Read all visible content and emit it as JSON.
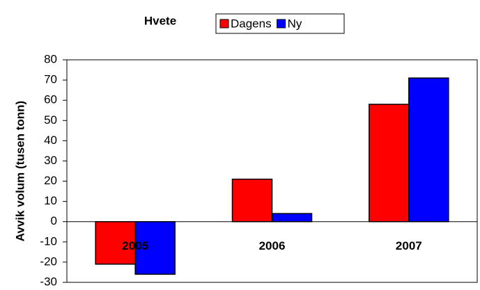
{
  "chart_data": {
    "type": "bar",
    "title": "Hvete",
    "y_label": "Avvik volum (tusen tonn)",
    "categories": [
      "2005",
      "2006",
      "2007"
    ],
    "series": [
      {
        "name": "Dagens",
        "color": "#ff0000",
        "values": [
          -21,
          21,
          58
        ]
      },
      {
        "name": "Ny",
        "color": "#0000ff",
        "values": [
          -26,
          4,
          71
        ]
      }
    ],
    "ylim": [
      -30,
      80
    ],
    "yticks": [
      -30,
      -20,
      -10,
      0,
      10,
      20,
      30,
      40,
      50,
      60,
      70,
      80
    ],
    "grid": false
  }
}
